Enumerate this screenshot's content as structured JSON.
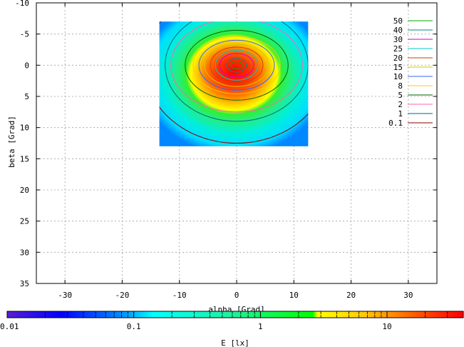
{
  "chart_data": {
    "type": "heatmap",
    "xlabel": "alpha [Grad]",
    "ylabel": "beta [Grad]",
    "xlim": [
      -35,
      35
    ],
    "ylim": [
      -10,
      35
    ],
    "y_axis_inverted": true,
    "x_ticks": [
      -30,
      -20,
      -10,
      0,
      10,
      20,
      30
    ],
    "y_ticks": [
      -10,
      -5,
      0,
      5,
      10,
      15,
      20,
      25,
      30,
      35
    ],
    "grid": true,
    "data_extent": {
      "alpha": [
        -13.5,
        12.5
      ],
      "beta": [
        -7,
        13
      ]
    },
    "peak": {
      "alpha": 0,
      "beta": 0
    },
    "contours": [
      {
        "level": "50",
        "color": "#00aa00",
        "rx": 1.0,
        "ry": 0.6
      },
      {
        "level": "40",
        "color": "#008888",
        "rx": 1.7,
        "ry": 1.1
      },
      {
        "level": "30",
        "color": "#cc00cc",
        "rx": 3.0,
        "ry": 1.9
      },
      {
        "level": "25",
        "color": "#00cccc",
        "rx": 3.7,
        "ry": 2.4
      },
      {
        "level": "20",
        "color": "#cc4400",
        "rx": 4.6,
        "ry": 2.9
      },
      {
        "level": "15",
        "color": "#cccc00",
        "rx": 5.6,
        "ry": 3.4
      },
      {
        "level": "10",
        "color": "#3366ff",
        "rx": 6.6,
        "ry": 4.0
      },
      {
        "level": "8",
        "color": "#ffcc00",
        "rx": 7.6,
        "ry": 4.6
      },
      {
        "level": "5",
        "color": "#006600",
        "rx": 9.0,
        "ry": 5.6
      },
      {
        "level": "2",
        "color": "#ff66aa",
        "rx": 11.5,
        "ry": 7.5
      },
      {
        "level": "1",
        "color": "#006688",
        "rx": 12.5,
        "ry": 9.0
      },
      {
        "level": "0.1",
        "color": "#880000",
        "rx": 16.0,
        "ry": 12.5
      }
    ],
    "colorbar": {
      "label": "E [lx]",
      "scale": "log",
      "range": [
        0.01,
        40
      ],
      "tick_labels": [
        "0.01",
        "0.1",
        "1",
        "10"
      ]
    }
  }
}
